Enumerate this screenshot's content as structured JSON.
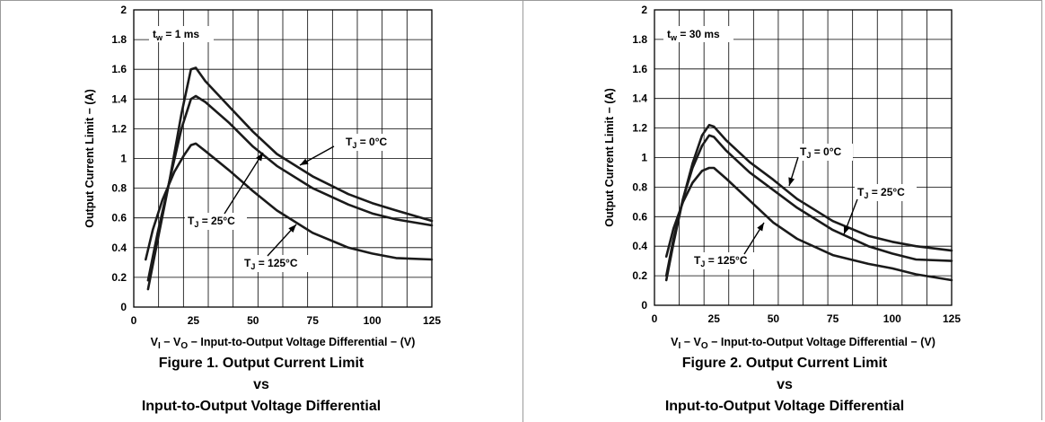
{
  "chart_data": [
    {
      "type": "line",
      "figure_title": "Figure 1. Output Current Limit",
      "figure_vs": "vs",
      "figure_subtitle": "Input-to-Output Voltage Differential",
      "xlabel": "V_I − V_O − Input-to-Output Voltage Differential − (V)",
      "ylabel": "Output Current Limit − (A)",
      "xlim": [
        0,
        125
      ],
      "ylim": [
        0,
        2
      ],
      "x_ticks": [
        "0",
        "25",
        "50",
        "75",
        "100",
        "125"
      ],
      "y_ticks": [
        "0",
        "0.2",
        "0.4",
        "0.6",
        "0.8",
        "1",
        "1.2",
        "1.4",
        "1.6",
        "1.8",
        "2"
      ],
      "grid": true,
      "condition": {
        "main": "t",
        "sub": "w",
        "rest": " = 1 ms"
      },
      "series": [
        {
          "name": "TJ = 0°C",
          "label_main": "T",
          "label_sub": "J",
          "label_rest": " = 0°C",
          "x": [
            6,
            10,
            15,
            20,
            24,
            26,
            30,
            40,
            50,
            60,
            75,
            90,
            100,
            110,
            125
          ],
          "y": [
            0.12,
            0.45,
            0.85,
            1.3,
            1.6,
            1.61,
            1.52,
            1.35,
            1.18,
            1.03,
            0.88,
            0.76,
            0.7,
            0.65,
            0.58
          ]
        },
        {
          "name": "TJ = 25°C",
          "label_main": "T",
          "label_sub": "J",
          "label_rest": " = 25°C",
          "x": [
            6,
            10,
            15,
            20,
            24,
            26,
            30,
            40,
            50,
            60,
            75,
            90,
            100,
            110,
            125
          ],
          "y": [
            0.18,
            0.5,
            0.85,
            1.2,
            1.4,
            1.42,
            1.38,
            1.24,
            1.08,
            0.95,
            0.8,
            0.69,
            0.63,
            0.59,
            0.55
          ]
        },
        {
          "name": "TJ = 125°C",
          "label_main": "T",
          "label_sub": "J",
          "label_rest": " = 125°C",
          "x": [
            5,
            8,
            12,
            17,
            21,
            24,
            26,
            30,
            40,
            50,
            60,
            75,
            90,
            100,
            110,
            125
          ],
          "y": [
            0.32,
            0.52,
            0.72,
            0.91,
            1.02,
            1.09,
            1.1,
            1.05,
            0.92,
            0.78,
            0.65,
            0.5,
            0.4,
            0.36,
            0.33,
            0.32
          ]
        }
      ]
    },
    {
      "type": "line",
      "figure_title": "Figure 2. Output Current Limit",
      "figure_vs": "vs",
      "figure_subtitle": "Input-to-Output Voltage Differential",
      "xlabel": "V_I − V_O − Input-to-Output Voltage Differential − (V)",
      "ylabel": "Output Current Limit − (A)",
      "xlim": [
        0,
        125
      ],
      "ylim": [
        0,
        2
      ],
      "x_ticks": [
        "0",
        "25",
        "50",
        "75",
        "100",
        "125"
      ],
      "y_ticks": [
        "0",
        "0.2",
        "0.4",
        "0.6",
        "0.8",
        "1",
        "1.2",
        "1.4",
        "1.6",
        "1.8",
        "2"
      ],
      "grid": true,
      "condition": {
        "main": "t",
        "sub": "w",
        "rest": " = 30 ms"
      },
      "series": [
        {
          "name": "TJ = 0°C",
          "label_main": "T",
          "label_sub": "J",
          "label_rest": " = 0°C",
          "x": [
            5,
            8,
            12,
            16,
            20,
            23,
            25,
            30,
            40,
            50,
            60,
            75,
            90,
            100,
            110,
            125
          ],
          "y": [
            0.17,
            0.42,
            0.72,
            0.96,
            1.15,
            1.22,
            1.21,
            1.12,
            0.97,
            0.85,
            0.72,
            0.57,
            0.47,
            0.43,
            0.4,
            0.37
          ]
        },
        {
          "name": "TJ = 25°C",
          "label_main": "T",
          "label_sub": "J",
          "label_rest": " = 25°C",
          "x": [
            5,
            8,
            12,
            16,
            20,
            23,
            25,
            30,
            40,
            50,
            60,
            75,
            90,
            100,
            110,
            125
          ],
          "y": [
            0.2,
            0.45,
            0.72,
            0.93,
            1.08,
            1.15,
            1.14,
            1.05,
            0.9,
            0.78,
            0.66,
            0.51,
            0.4,
            0.35,
            0.31,
            0.3
          ]
        },
        {
          "name": "TJ = 125°C",
          "label_main": "T",
          "label_sub": "J",
          "label_rest": " = 125°C",
          "x": [
            5,
            8,
            12,
            16,
            20,
            23,
            25,
            30,
            40,
            50,
            60,
            75,
            90,
            100,
            110,
            125
          ],
          "y": [
            0.33,
            0.52,
            0.7,
            0.83,
            0.91,
            0.93,
            0.93,
            0.86,
            0.71,
            0.56,
            0.45,
            0.34,
            0.28,
            0.25,
            0.21,
            0.17
          ]
        }
      ]
    }
  ]
}
